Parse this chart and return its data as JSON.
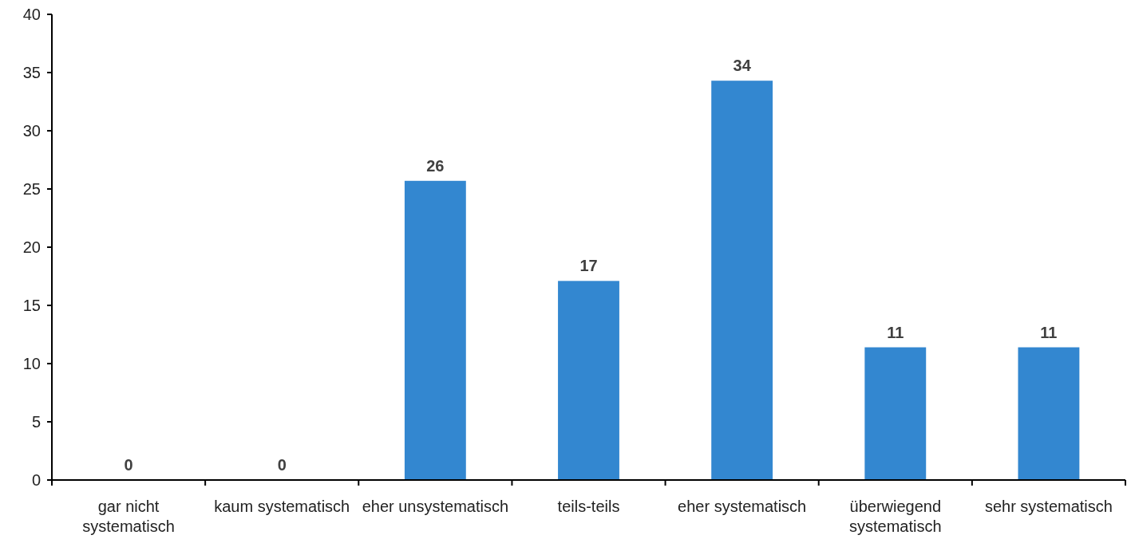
{
  "chart_data": {
    "type": "bar",
    "categories": [
      "gar nicht systematisch",
      "kaum systematisch",
      "eher unsystematisch",
      "teils-teils",
      "eher systematisch",
      "überwiegend systematisch",
      "sehr systematisch"
    ],
    "values": [
      0,
      0,
      25.7,
      17.1,
      34.3,
      11.4,
      11.4
    ],
    "value_labels": [
      "0",
      "0",
      "26",
      "17",
      "34",
      "11",
      "11"
    ],
    "color": "#3387d0",
    "ylim": [
      0,
      40
    ],
    "yticks": [
      0,
      5,
      10,
      15,
      20,
      25,
      30,
      35,
      40
    ],
    "grid": false
  }
}
